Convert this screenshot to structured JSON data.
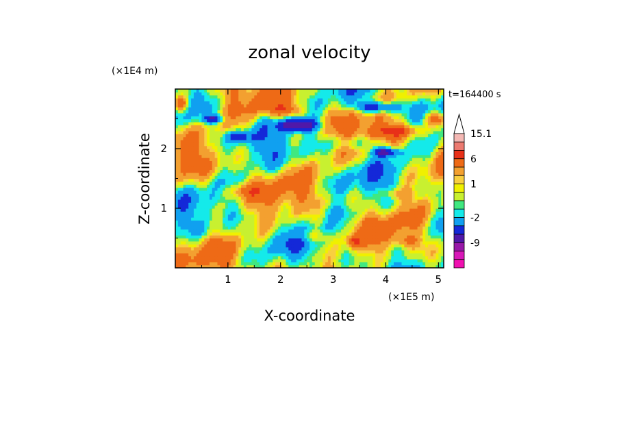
{
  "chart_data": {
    "type": "heatmap",
    "title": "zonal velocity",
    "xlabel": "X-coordinate",
    "ylabel": "Z-coordinate",
    "x_unit": "(×1E5 m)",
    "y_unit": "(×1E4 m)",
    "time_label": "t=164400 s",
    "xlim": [
      0,
      5.1
    ],
    "ylim": [
      0,
      3.0
    ],
    "x_ticks": [
      1,
      2,
      3,
      4,
      5
    ],
    "x_tick_labels": [
      "1",
      "2",
      "3",
      "4",
      "5"
    ],
    "y_ticks": [
      1,
      2
    ],
    "y_tick_labels": [
      "1",
      "2"
    ],
    "grid": false,
    "colorbar": {
      "position": "right",
      "levels": [
        15.1,
        12,
        9,
        6,
        3,
        1.5,
        1,
        0.5,
        -0.5,
        -1,
        -2,
        -4,
        -6,
        -9,
        -12,
        -15
      ],
      "colors": [
        "#f4b8b4",
        "#ec7a70",
        "#e83018",
        "#ee6a16",
        "#f3a030",
        "#f8cf40",
        "#f0f000",
        "#c8f030",
        "#40e880",
        "#14eaea",
        "#10a0f0",
        "#1428d8",
        "#5018a8",
        "#9818a8",
        "#d818b8",
        "#f010b0"
      ],
      "labels": [
        {
          "value": 15.1,
          "text": "15.1"
        },
        {
          "value": 6,
          "text": "6"
        },
        {
          "value": 1,
          "text": "1"
        },
        {
          "value": -2,
          "text": "-2"
        },
        {
          "value": -9,
          "text": "-9"
        }
      ]
    },
    "field_features": [
      {
        "x": 2.35,
        "z": 2.4,
        "sx": 0.35,
        "sz": 0.1,
        "value": -9
      },
      {
        "x": 3.85,
        "z": 2.7,
        "sx": 0.4,
        "sz": 0.1,
        "value": -8
      },
      {
        "x": 0.72,
        "z": 2.5,
        "sx": 0.2,
        "sz": 0.07,
        "value": -6
      },
      {
        "x": 1.2,
        "z": 2.2,
        "sx": 0.25,
        "sz": 0.09,
        "value": -5
      },
      {
        "x": 4.0,
        "z": 1.95,
        "sx": 0.25,
        "sz": 0.08,
        "value": -7
      },
      {
        "x": 3.4,
        "z": 2.1,
        "sx": 0.5,
        "sz": 0.12,
        "value": -3
      },
      {
        "x": 4.2,
        "z": 2.3,
        "sx": 0.5,
        "sz": 0.1,
        "value": 5
      },
      {
        "x": 4.95,
        "z": 2.5,
        "sx": 0.2,
        "sz": 0.12,
        "value": 6
      },
      {
        "x": 2.1,
        "z": 2.65,
        "sx": 0.4,
        "sz": 0.1,
        "value": 4
      },
      {
        "x": 0.1,
        "z": 2.75,
        "sx": 0.15,
        "sz": 0.12,
        "value": 6
      },
      {
        "x": 1.3,
        "z": 1.3,
        "sx": 0.45,
        "sz": 0.12,
        "value": 3
      },
      {
        "x": 2.55,
        "z": 0.55,
        "sx": 0.35,
        "sz": 0.1,
        "value": 3
      },
      {
        "x": 3.4,
        "z": 0.45,
        "sx": 0.12,
        "sz": 0.1,
        "value": 5
      },
      {
        "x": 4.4,
        "z": 0.45,
        "sx": 0.2,
        "sz": 0.1,
        "value": 3
      },
      {
        "x": 4.2,
        "z": 1.25,
        "sx": 0.3,
        "sz": 0.1,
        "value": 3
      },
      {
        "x": 3.0,
        "z": 0.95,
        "sx": 0.45,
        "sz": 0.14,
        "value": -1.5
      },
      {
        "x": 0.75,
        "z": 0.6,
        "sx": 0.9,
        "sz": 0.12,
        "value": -0.8
      },
      {
        "x": 4.8,
        "z": 1.0,
        "sx": 0.4,
        "sz": 0.2,
        "value": 0.7
      },
      {
        "x": 0.4,
        "z": 1.05,
        "sx": 0.4,
        "sz": 0.18,
        "value": 0.8
      }
    ]
  }
}
